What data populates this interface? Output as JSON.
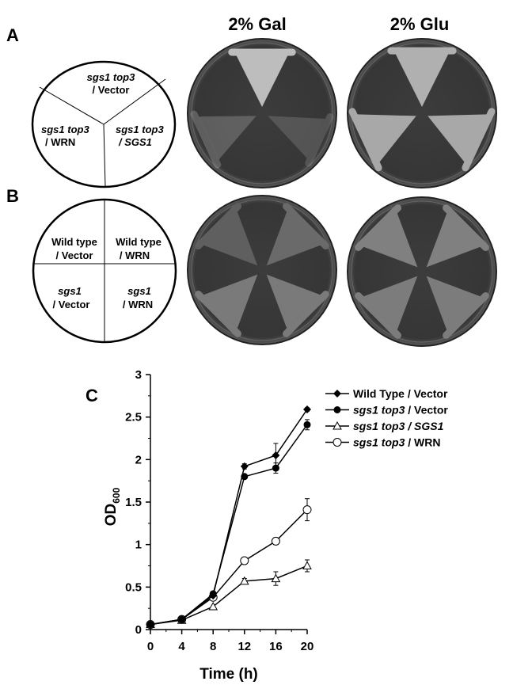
{
  "panels": {
    "a_label": "A",
    "b_label": "B",
    "c_label": "C"
  },
  "conditions": {
    "gal": "2% Gal",
    "glu": "2% Glu"
  },
  "schematic_a": [
    {
      "line1": "sgs1 top3",
      "line2": "/ Vector",
      "line2_italic": false
    },
    {
      "line1": "sgs1 top3",
      "line2": "/ WRN",
      "line2_italic": false
    },
    {
      "line1": "sgs1 top3",
      "line2": "/ SGS1",
      "line2_italic": true
    }
  ],
  "schematic_b": [
    {
      "line1": "Wild type",
      "line2": "/ Vector",
      "line1_italic": false
    },
    {
      "line1": "Wild type",
      "line2": "/ WRN",
      "line1_italic": false
    },
    {
      "line1": "sgs1",
      "line2": "/ Vector",
      "line1_italic": true
    },
    {
      "line1": "sgs1",
      "line2": "/ WRN",
      "line1_italic": true
    }
  ],
  "chart_data": {
    "type": "line",
    "xlabel": "Time (h)",
    "ylabel": "OD",
    "ylabel_sub": "600",
    "x": [
      0,
      4,
      8,
      12,
      16,
      20
    ],
    "xticks": [
      "0",
      "4",
      "8",
      "12",
      "16",
      "20"
    ],
    "yticks": [
      "0",
      "0.5",
      "1",
      "1.5",
      "2",
      "2.5",
      "3"
    ],
    "xlim": [
      0,
      20
    ],
    "ylim": [
      0,
      3
    ],
    "grid": false,
    "legend_placement": "top-right",
    "series": [
      {
        "name": "Wild Type / Vector",
        "name_italic": "",
        "name_rest": "Wild Type / Vector",
        "marker": "filled-diamond",
        "values": [
          0.06,
          0.12,
          0.4,
          1.92,
          2.05,
          2.59
        ],
        "errors": [
          0,
          0,
          0,
          0.03,
          0.14,
          0.02
        ]
      },
      {
        "name": "sgs1 top3 / Vector",
        "name_italic": "sgs1 top3",
        "name_rest": " / Vector",
        "marker": "filled-circle",
        "values": [
          0.06,
          0.12,
          0.42,
          1.8,
          1.9,
          2.41
        ],
        "errors": [
          0,
          0,
          0,
          0.02,
          0.06,
          0.06
        ]
      },
      {
        "name": "sgs1 top3 / SGS1",
        "name_italic": "sgs1 top3 / SGS1",
        "name_rest": "",
        "marker": "open-triangle",
        "values": [
          0.06,
          0.11,
          0.27,
          0.57,
          0.6,
          0.75
        ],
        "errors": [
          0,
          0,
          0,
          0.03,
          0.08,
          0.07
        ]
      },
      {
        "name": "sgs1 top3 / WRN",
        "name_italic": "sgs1 top3",
        "name_rest": " / WRN",
        "marker": "open-circle",
        "values": [
          0.06,
          0.12,
          0.38,
          0.81,
          1.04,
          1.41
        ],
        "errors": [
          0,
          0,
          0,
          0,
          0.04,
          0.13
        ]
      }
    ]
  }
}
